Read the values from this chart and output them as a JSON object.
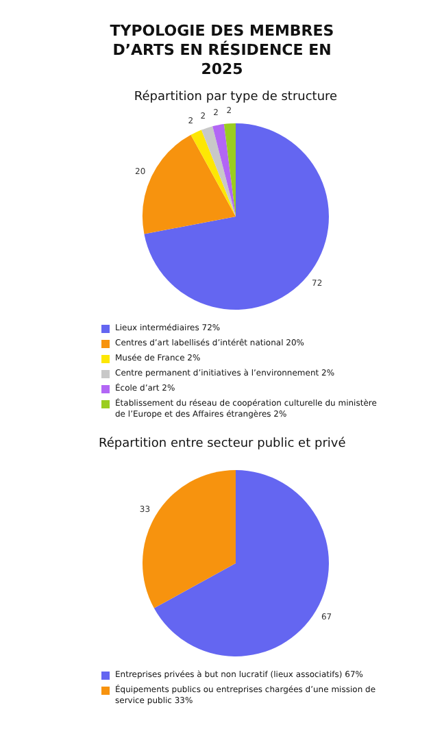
{
  "chart_data": [
    {
      "type": "pie",
      "title": "TYPOLOGIE DES MEMBRES D’ARTS EN RÉSIDENCE EN 2025",
      "subtitle": "Répartition par type de structure",
      "categories": [
        "Lieux intermédiaires 72%",
        "Centres d’art labellisés d’intérêt national 20%",
        "Musée de France 2%",
        "Centre permanent d’initiatives à l’environnement 2%",
        "École d’art 2%",
        "Établissement du réseau de coopération culturelle du ministère de l’Europe et des Affaires étrangères 2%"
      ],
      "values": [
        72,
        20,
        2,
        2,
        2,
        2
      ],
      "colors": [
        "#6466f1",
        "#f7930e",
        "#fde704",
        "#c8c8c8",
        "#b266f5",
        "#9acd20"
      ],
      "data_labels": true,
      "legend": "bottom"
    },
    {
      "type": "pie",
      "title": "Répartition entre secteur public et privé",
      "categories": [
        "Entreprises privées à but non lucratif (lieux associatifs) 67%",
        "Équipements publics ou entreprises chargées d’une mission de service public 33%"
      ],
      "values": [
        67,
        33
      ],
      "colors": [
        "#6466f1",
        "#f7930e"
      ],
      "data_labels": true,
      "legend": "bottom"
    }
  ]
}
